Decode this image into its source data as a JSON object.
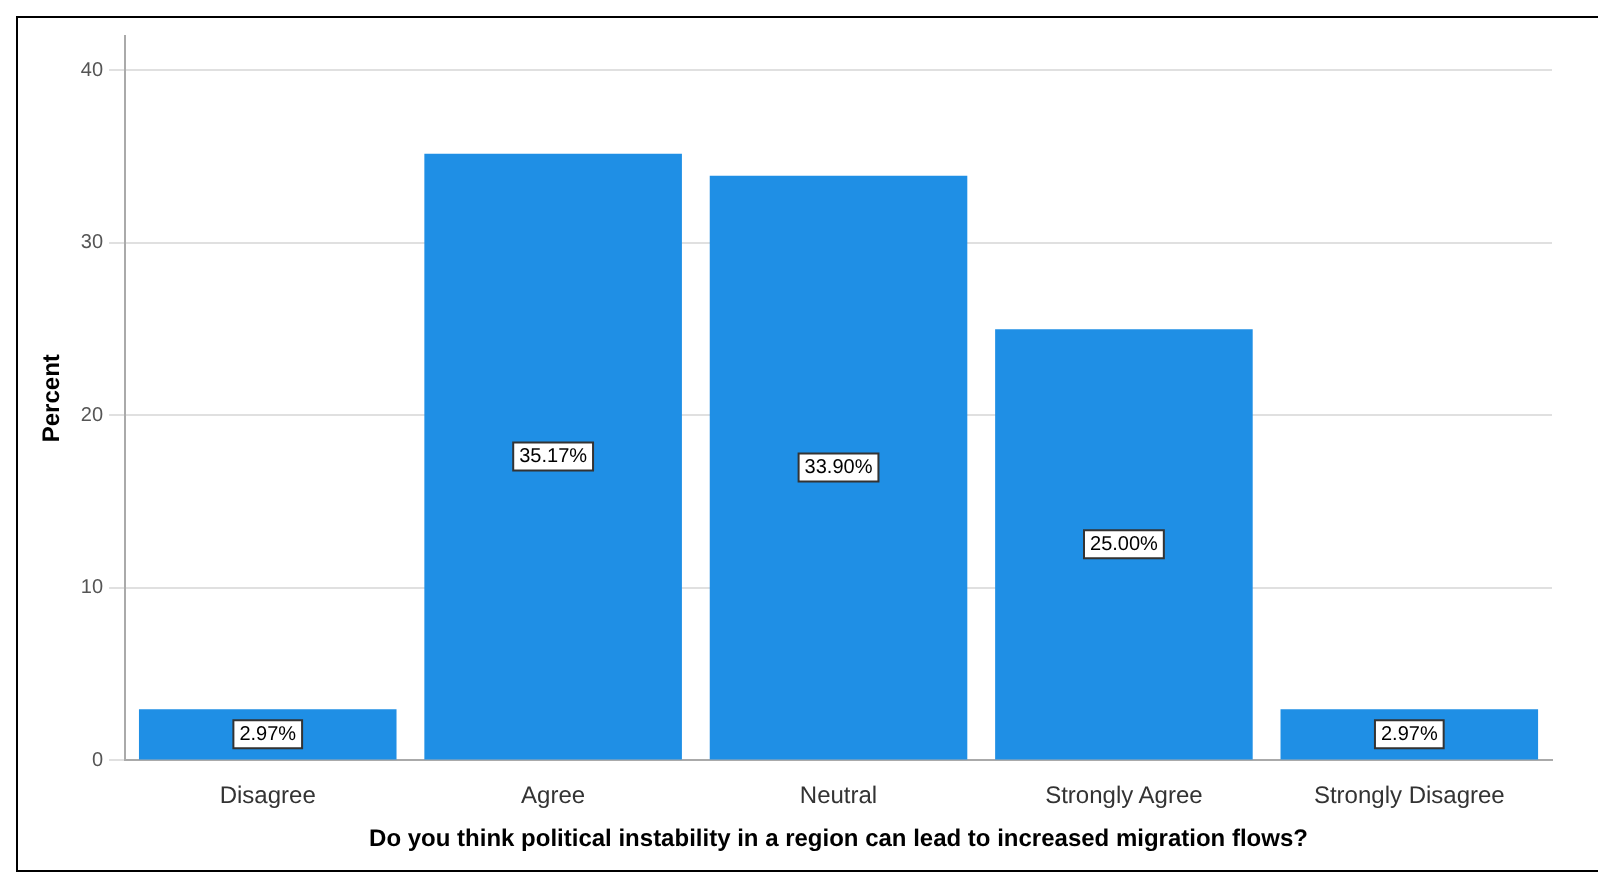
{
  "chart_data": {
    "type": "bar",
    "xlabel": "Do you think political instability in a region can lead to increased migration flows?",
    "ylabel": "Percent",
    "categories": [
      "Disagree",
      "Agree",
      "Neutral",
      "Strongly Agree",
      "Strongly Disagree"
    ],
    "values": [
      2.97,
      35.17,
      33.9,
      25.0,
      2.97
    ],
    "value_labels": [
      "2.97%",
      "35.17%",
      "33.90%",
      "25.00%",
      "2.97%"
    ],
    "color": "#1f8fe5",
    "ylim": [
      0,
      42
    ],
    "yticks": [
      0,
      10,
      20,
      30,
      40
    ],
    "grid": "y"
  }
}
